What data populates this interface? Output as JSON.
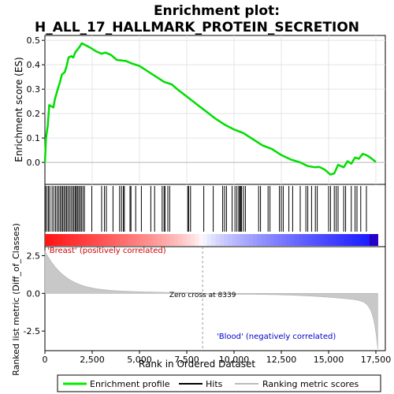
{
  "chart_data": {
    "type": "line",
    "title_line1": "Enrichment plot:",
    "title_line2": "H_ALL_17_HALLMARK_PROTEIN_SECRETION",
    "xlabel": "Rank in Ordered Dataset",
    "ylabel_top": "Enrichment score (ES)",
    "ylabel_bottom": "Ranked list metric (Diff_of_Classes)",
    "xlim": [
      0,
      18000
    ],
    "x_ticks": [
      0,
      2500,
      5000,
      7500,
      10000,
      12500,
      15000,
      17500
    ],
    "x_tick_labels": [
      "0",
      "2,500",
      "5,000",
      "7,500",
      "10,000",
      "12,500",
      "15,000",
      "17,500"
    ],
    "es_ylim": [
      -0.09,
      0.52
    ],
    "es_ticks": [
      0.0,
      0.1,
      0.2,
      0.3,
      0.4,
      0.5
    ],
    "es_tick_labels": [
      "0.0",
      "0.1",
      "0.2",
      "0.3",
      "0.4",
      "0.5"
    ],
    "metric_ylim": [
      -3.8,
      3.1
    ],
    "metric_ticks": [
      2.5,
      0.0,
      -2.5
    ],
    "metric_tick_labels": [
      "2.5",
      "0.0",
      "-2.5"
    ],
    "n_genes": 17600,
    "zero_cross": 8339,
    "zero_cross_label": "Zero cross at 8339",
    "positive_label": "'Breast' (positively correlated)",
    "negative_label": "'Blood' (negatively correlated)",
    "es_curve": [
      [
        0,
        0.0
      ],
      [
        60,
        0.1
      ],
      [
        150,
        0.15
      ],
      [
        230,
        0.235
      ],
      [
        450,
        0.225
      ],
      [
        530,
        0.26
      ],
      [
        680,
        0.3
      ],
      [
        800,
        0.33
      ],
      [
        900,
        0.36
      ],
      [
        1050,
        0.37
      ],
      [
        1150,
        0.395
      ],
      [
        1250,
        0.43
      ],
      [
        1400,
        0.435
      ],
      [
        1500,
        0.43
      ],
      [
        1600,
        0.45
      ],
      [
        1700,
        0.46
      ],
      [
        1850,
        0.475
      ],
      [
        1950,
        0.488
      ],
      [
        2150,
        0.48
      ],
      [
        2400,
        0.47
      ],
      [
        2700,
        0.455
      ],
      [
        3000,
        0.445
      ],
      [
        3200,
        0.45
      ],
      [
        3500,
        0.44
      ],
      [
        3800,
        0.42
      ],
      [
        4300,
        0.415
      ],
      [
        4600,
        0.405
      ],
      [
        5000,
        0.395
      ],
      [
        5500,
        0.37
      ],
      [
        6000,
        0.345
      ],
      [
        6300,
        0.33
      ],
      [
        6700,
        0.32
      ],
      [
        7000,
        0.3
      ],
      [
        7500,
        0.27
      ],
      [
        8000,
        0.24
      ],
      [
        8500,
        0.21
      ],
      [
        9000,
        0.18
      ],
      [
        9500,
        0.155
      ],
      [
        10000,
        0.135
      ],
      [
        10500,
        0.12
      ],
      [
        11000,
        0.095
      ],
      [
        11500,
        0.07
      ],
      [
        12000,
        0.055
      ],
      [
        12500,
        0.03
      ],
      [
        13000,
        0.012
      ],
      [
        13500,
        0.0
      ],
      [
        13900,
        -0.015
      ],
      [
        14300,
        -0.02
      ],
      [
        14500,
        -0.018
      ],
      [
        14800,
        -0.03
      ],
      [
        15100,
        -0.05
      ],
      [
        15300,
        -0.045
      ],
      [
        15500,
        -0.01
      ],
      [
        15800,
        -0.02
      ],
      [
        16000,
        0.005
      ],
      [
        16200,
        -0.005
      ],
      [
        16400,
        0.02
      ],
      [
        16600,
        0.015
      ],
      [
        16800,
        0.035
      ],
      [
        17000,
        0.03
      ],
      [
        17200,
        0.02
      ],
      [
        17500,
        0.002
      ]
    ],
    "hits": [
      30,
      110,
      190,
      260,
      380,
      470,
      560,
      640,
      720,
      800,
      870,
      940,
      1010,
      1080,
      1150,
      1220,
      1300,
      1380,
      1460,
      1530,
      1600,
      1660,
      1720,
      1790,
      1860,
      1930,
      2010,
      2090,
      2480,
      3000,
      3150,
      3250,
      3600,
      3950,
      4050,
      4150,
      4200,
      4500,
      4550,
      4800,
      5100,
      5600,
      5800,
      6200,
      6300,
      6350,
      6500,
      6600,
      7550,
      7600,
      7700,
      8400,
      8900,
      9400,
      9500,
      9600,
      9900,
      10050,
      10150,
      10250,
      10300,
      10350,
      10400,
      10500,
      10600,
      11300,
      11400,
      11800,
      11900,
      12400,
      12500,
      12600,
      12900,
      13100,
      13500,
      13800,
      13900,
      14100,
      14300,
      14400,
      15000,
      15100,
      15300,
      15400,
      15500,
      15800,
      15900,
      16200,
      16400,
      16500,
      16700,
      17000
    ],
    "legend": [
      "Enrichment profile",
      "Hits",
      "Ranking metric scores"
    ]
  }
}
